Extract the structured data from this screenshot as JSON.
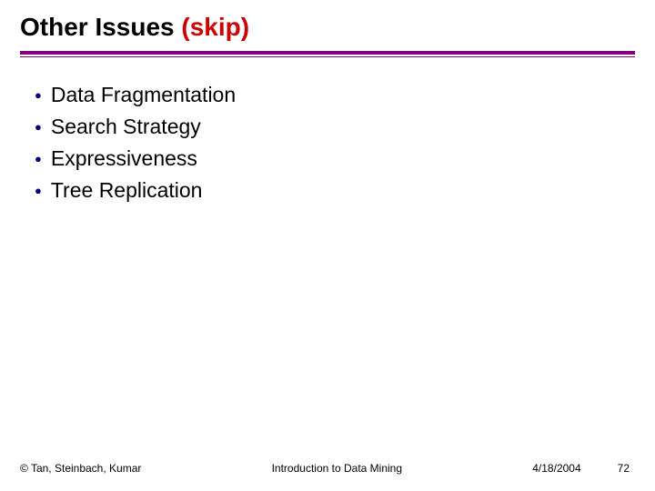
{
  "title": {
    "main": "Other Issues ",
    "skip": "(skip)"
  },
  "bullets": [
    "Data Fragmentation",
    "Search Strategy",
    "Expressiveness",
    "Tree Replication"
  ],
  "footer": {
    "copyright": "© Tan, Steinbach, Kumar",
    "center": "Introduction to Data Mining",
    "date": "4/18/2004",
    "page": "72"
  },
  "colors": {
    "rule": "#800080",
    "bullet": "#000080",
    "skip": "#cc0000"
  }
}
